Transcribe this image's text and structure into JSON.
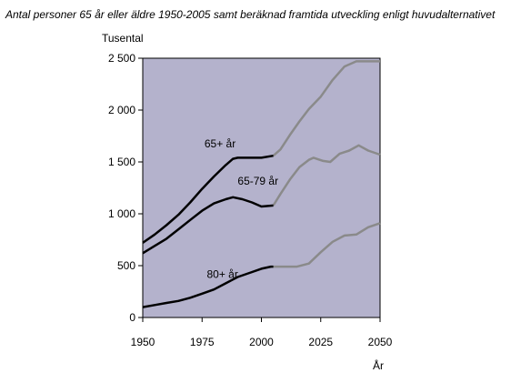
{
  "chart_data": {
    "type": "line",
    "title": "Antal personer 65 år eller äldre 1950-2005 samt beräknad framtida utveckling enligt huvudalternativet",
    "ylabel": "Tusental",
    "xlabel": "År",
    "xlim": [
      1950,
      2050
    ],
    "ylim": [
      0,
      2500
    ],
    "x_ticks": [
      1950,
      1975,
      2000,
      2025,
      2050
    ],
    "x_tick_labels": [
      "1950",
      "1975",
      "2000",
      "2025",
      "2050"
    ],
    "y_ticks": [
      0,
      500,
      1000,
      1500,
      2000,
      2500
    ],
    "y_tick_labels": [
      "0",
      "500",
      "1 000",
      "1 500",
      "2 000",
      "2 500"
    ],
    "plot_background": "#b4b2cc",
    "grid": false,
    "historical_end_year": 2005,
    "historical_color": "#000000",
    "projection_color": "#8a8a8a",
    "series": [
      {
        "name": "65+ år",
        "label_x": 1976,
        "label_y": 1640,
        "points": [
          [
            1950,
            720
          ],
          [
            1955,
            800
          ],
          [
            1960,
            890
          ],
          [
            1965,
            990
          ],
          [
            1970,
            1110
          ],
          [
            1975,
            1240
          ],
          [
            1980,
            1360
          ],
          [
            1985,
            1470
          ],
          [
            1988,
            1530
          ],
          [
            1990,
            1540
          ],
          [
            1995,
            1540
          ],
          [
            2000,
            1540
          ],
          [
            2005,
            1560
          ],
          [
            2008,
            1620
          ],
          [
            2012,
            1760
          ],
          [
            2016,
            1890
          ],
          [
            2020,
            2010
          ],
          [
            2025,
            2130
          ],
          [
            2030,
            2290
          ],
          [
            2035,
            2420
          ],
          [
            2040,
            2470
          ],
          [
            2045,
            2470
          ],
          [
            2050,
            2470
          ]
        ]
      },
      {
        "name": "65-79 år",
        "label_x": 1990,
        "label_y": 1280,
        "points": [
          [
            1950,
            620
          ],
          [
            1955,
            690
          ],
          [
            1960,
            760
          ],
          [
            1965,
            850
          ],
          [
            1970,
            940
          ],
          [
            1975,
            1030
          ],
          [
            1980,
            1100
          ],
          [
            1985,
            1140
          ],
          [
            1988,
            1160
          ],
          [
            1992,
            1140
          ],
          [
            1996,
            1110
          ],
          [
            2000,
            1070
          ],
          [
            2005,
            1080
          ],
          [
            2008,
            1190
          ],
          [
            2012,
            1330
          ],
          [
            2016,
            1450
          ],
          [
            2020,
            1520
          ],
          [
            2022,
            1540
          ],
          [
            2026,
            1510
          ],
          [
            2029,
            1500
          ],
          [
            2033,
            1580
          ],
          [
            2037,
            1610
          ],
          [
            2041,
            1660
          ],
          [
            2045,
            1610
          ],
          [
            2050,
            1570
          ]
        ]
      },
      {
        "name": "80+ år",
        "label_x": 1977,
        "label_y": 380,
        "points": [
          [
            1950,
            100
          ],
          [
            1955,
            120
          ],
          [
            1960,
            140
          ],
          [
            1965,
            160
          ],
          [
            1970,
            190
          ],
          [
            1975,
            230
          ],
          [
            1980,
            270
          ],
          [
            1985,
            330
          ],
          [
            1990,
            390
          ],
          [
            1995,
            430
          ],
          [
            2000,
            470
          ],
          [
            2004,
            490
          ],
          [
            2005,
            490
          ],
          [
            2010,
            490
          ],
          [
            2015,
            490
          ],
          [
            2020,
            520
          ],
          [
            2025,
            630
          ],
          [
            2030,
            730
          ],
          [
            2035,
            790
          ],
          [
            2040,
            800
          ],
          [
            2045,
            870
          ],
          [
            2050,
            910
          ]
        ]
      }
    ]
  }
}
